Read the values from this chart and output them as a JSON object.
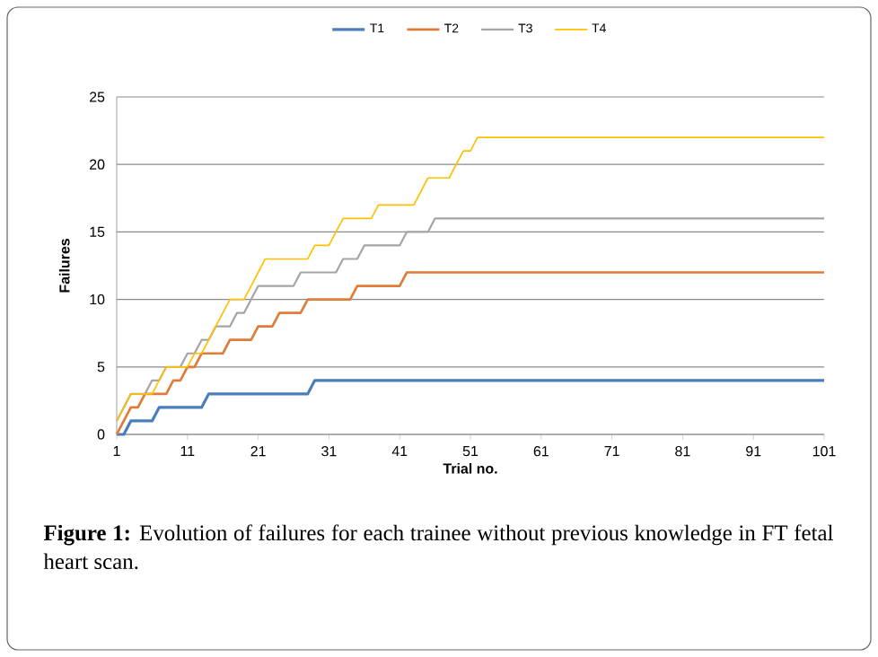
{
  "chart_data": {
    "type": "line",
    "xlabel": "Trial no.",
    "ylabel": "Failures",
    "xlim": [
      1,
      101
    ],
    "xticks": [
      1,
      11,
      21,
      31,
      41,
      51,
      61,
      71,
      81,
      91,
      101
    ],
    "ylim": [
      0,
      25
    ],
    "yticks": [
      0,
      5,
      10,
      15,
      20,
      25
    ],
    "grid": "y",
    "legend": "top",
    "line_style": "solid",
    "annotations": [
      "**Figure 1:** Evolution of failures for each trainee without previous knowledge in FT fetal heart scan."
    ],
    "series": [
      {
        "name": "T1",
        "color": "#4a7ebb",
        "x": [
          1,
          2,
          3,
          6,
          7,
          13,
          14,
          28,
          29,
          101
        ],
        "values": [
          0,
          0,
          1,
          1,
          2,
          2,
          3,
          3,
          4,
          4
        ]
      },
      {
        "name": "T2",
        "color": "#e07b39",
        "x": [
          1,
          2,
          3,
          4,
          5,
          8,
          9,
          10,
          11,
          12,
          13,
          16,
          17,
          20,
          21,
          23,
          24,
          27,
          28,
          34,
          35,
          41,
          42,
          101
        ],
        "values": [
          0,
          1,
          2,
          2,
          3,
          3,
          4,
          4,
          5,
          5,
          6,
          6,
          7,
          7,
          8,
          8,
          9,
          9,
          10,
          10,
          11,
          11,
          12,
          12
        ]
      },
      {
        "name": "T3",
        "color": "#a5a5a5",
        "x": [
          1,
          2,
          3,
          5,
          6,
          7,
          8,
          10,
          11,
          12,
          13,
          14,
          15,
          17,
          18,
          19,
          20,
          21,
          26,
          27,
          32,
          33,
          35,
          36,
          41,
          42,
          45,
          46,
          101
        ],
        "values": [
          1,
          2,
          3,
          3,
          4,
          4,
          5,
          5,
          6,
          6,
          7,
          7,
          8,
          8,
          9,
          9,
          10,
          11,
          11,
          12,
          12,
          13,
          13,
          14,
          14,
          15,
          15,
          16,
          16
        ]
      },
      {
        "name": "T4",
        "color": "#ffc000",
        "x": [
          1,
          2,
          3,
          6,
          7,
          8,
          11,
          12,
          13,
          14,
          15,
          16,
          17,
          19,
          20,
          21,
          22,
          28,
          29,
          31,
          32,
          33,
          37,
          38,
          43,
          44,
          45,
          48,
          49,
          50,
          51,
          52,
          101
        ],
        "values": [
          1,
          2,
          3,
          3,
          4,
          5,
          5,
          6,
          6,
          7,
          8,
          9,
          10,
          10,
          11,
          12,
          13,
          13,
          14,
          14,
          15,
          16,
          16,
          17,
          17,
          18,
          19,
          19,
          20,
          21,
          21,
          22,
          22
        ]
      }
    ]
  }
}
